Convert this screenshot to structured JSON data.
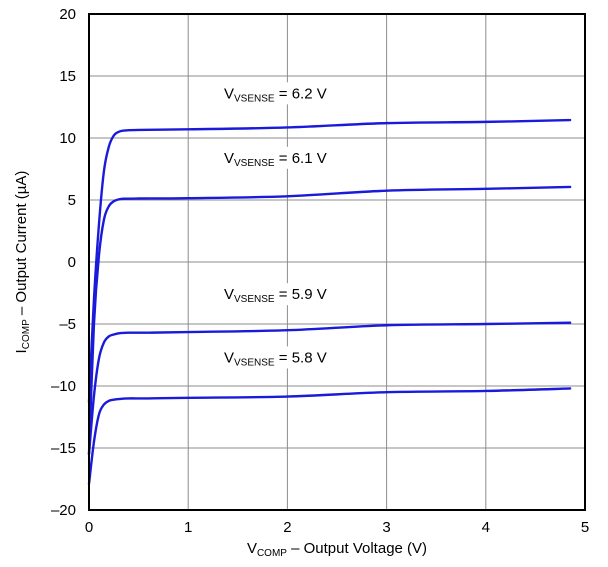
{
  "chart_data": {
    "type": "line",
    "title": "",
    "xlabel": {
      "main": "V",
      "sub": "COMP",
      "rest": " – Output Voltage (V)"
    },
    "ylabel": {
      "main": "I",
      "sub": "COMP",
      "rest": " – Output Current (µA)"
    },
    "xlim": [
      0,
      5
    ],
    "ylim": [
      -20,
      20
    ],
    "xticks": [
      0,
      1,
      2,
      3,
      4,
      5
    ],
    "yticks": [
      20,
      15,
      10,
      5,
      0,
      -5,
      -10,
      -15,
      -20
    ],
    "ytick_labels": [
      "20",
      "15",
      "10",
      "5",
      "0",
      "–5",
      "–10",
      "–15",
      "–20"
    ],
    "grid": true,
    "line_color": "#1a1adb",
    "series": [
      {
        "name": {
          "main": "V",
          "sub": "VSENSE",
          "rest": " = 6.2 V"
        },
        "x": [
          0.0,
          0.05,
          0.1,
          0.15,
          0.2,
          0.25,
          0.3,
          0.35,
          0.5,
          1.0,
          2.0,
          3.0,
          4.0,
          4.85
        ],
        "y": [
          -11.3,
          -3.0,
          3.0,
          7.3,
          9.3,
          10.2,
          10.5,
          10.6,
          10.65,
          10.7,
          10.85,
          11.2,
          11.3,
          11.45
        ]
      },
      {
        "name": {
          "main": "V",
          "sub": "VSENSE",
          "rest": " = 6.1 V"
        },
        "x": [
          0.0,
          0.05,
          0.1,
          0.15,
          0.2,
          0.25,
          0.3,
          0.35,
          0.5,
          1.0,
          2.0,
          3.0,
          4.0,
          4.85
        ],
        "y": [
          -15.5,
          -5.0,
          0.5,
          3.4,
          4.5,
          4.9,
          5.05,
          5.1,
          5.12,
          5.15,
          5.3,
          5.75,
          5.9,
          6.05
        ]
      },
      {
        "name": {
          "main": "V",
          "sub": "VSENSE",
          "rest": " = 5.9 V"
        },
        "x": [
          0.0,
          0.05,
          0.1,
          0.15,
          0.2,
          0.25,
          0.3,
          0.4,
          0.6,
          1.0,
          2.0,
          3.0,
          4.0,
          4.85
        ],
        "y": [
          -15.5,
          -10.8,
          -7.8,
          -6.5,
          -6.0,
          -5.85,
          -5.75,
          -5.7,
          -5.7,
          -5.65,
          -5.5,
          -5.1,
          -5.0,
          -4.9
        ]
      },
      {
        "name": {
          "main": "V",
          "sub": "VSENSE",
          "rest": " = 5.8 V"
        },
        "x": [
          0.0,
          0.05,
          0.1,
          0.15,
          0.2,
          0.25,
          0.3,
          0.4,
          0.6,
          1.0,
          2.0,
          3.0,
          4.0,
          4.85
        ],
        "y": [
          -17.9,
          -14.5,
          -12.3,
          -11.5,
          -11.2,
          -11.1,
          -11.05,
          -11.0,
          -11.0,
          -10.95,
          -10.85,
          -10.5,
          -10.4,
          -10.2
        ]
      }
    ]
  }
}
